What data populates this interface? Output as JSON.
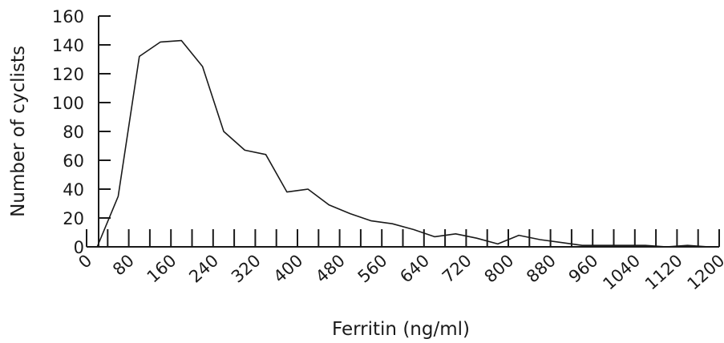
{
  "chart_data": {
    "type": "line",
    "xlabel": "Ferritin (ng/ml)",
    "ylabel": "Number of cyclists",
    "xlim": [
      0,
      1200
    ],
    "ylim": [
      0,
      160
    ],
    "x_ticks": [
      0,
      80,
      160,
      240,
      320,
      400,
      480,
      560,
      640,
      720,
      800,
      880,
      960,
      1040,
      1120,
      1200
    ],
    "y_ticks": [
      0,
      20,
      40,
      60,
      80,
      100,
      120,
      140,
      160
    ],
    "grid": false,
    "legend": "none",
    "series": [
      {
        "x": [
          20,
          60,
          100,
          140,
          180,
          220,
          260,
          300,
          340,
          380,
          420,
          460,
          500,
          540,
          580,
          620,
          660,
          700,
          740,
          780,
          820,
          860,
          900,
          940,
          980,
          1020,
          1060,
          1100,
          1140,
          1180,
          1200
        ],
        "values": [
          0,
          35,
          132,
          142,
          143,
          125,
          80,
          67,
          64,
          38,
          40,
          29,
          23,
          18,
          16,
          12,
          7,
          9,
          6,
          2,
          8,
          5,
          3,
          1,
          1,
          1,
          1,
          0,
          1,
          0,
          0
        ]
      }
    ]
  }
}
